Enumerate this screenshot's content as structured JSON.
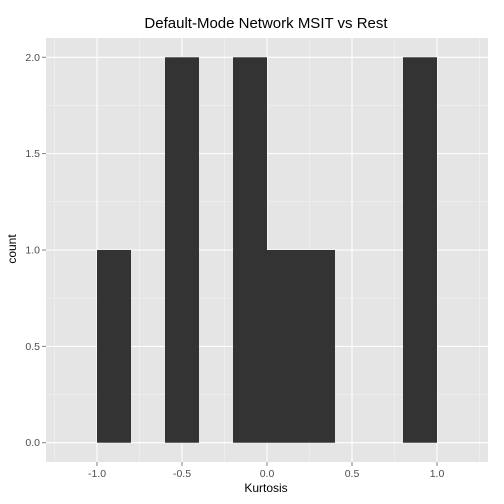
{
  "chart_data": {
    "type": "bar",
    "subtype": "histogram",
    "title": "Default-Mode Network MSIT vs Rest",
    "xlabel": "Kurtosis",
    "ylabel": "count",
    "xlim": [
      -1.3,
      1.3
    ],
    "ylim": [
      -0.1,
      2.1
    ],
    "xticks": [
      -1.0,
      -0.5,
      0.0,
      0.5,
      1.0
    ],
    "xtick_labels": [
      "-1.0",
      "-0.5",
      "0.0",
      "0.5",
      "1.0"
    ],
    "yticks": [
      0.0,
      0.5,
      1.0,
      1.5,
      2.0
    ],
    "ytick_labels": [
      "0.0",
      "0.5",
      "1.0",
      "1.5",
      "2.0"
    ],
    "bins": [
      {
        "x0": -1.0,
        "x1": -0.8,
        "count": 1
      },
      {
        "x0": -0.8,
        "x1": -0.6,
        "count": 0
      },
      {
        "x0": -0.6,
        "x1": -0.4,
        "count": 2
      },
      {
        "x0": -0.4,
        "x1": -0.2,
        "count": 0
      },
      {
        "x0": -0.2,
        "x1": 0.0,
        "count": 2
      },
      {
        "x0": 0.0,
        "x1": 0.2,
        "count": 1
      },
      {
        "x0": 0.2,
        "x1": 0.4,
        "count": 1
      },
      {
        "x0": 0.4,
        "x1": 0.6,
        "count": 0
      },
      {
        "x0": 0.6,
        "x1": 0.8,
        "count": 0
      },
      {
        "x0": 0.8,
        "x1": 1.0,
        "count": 2
      }
    ],
    "grid": true,
    "colors": {
      "panel": "#e5e5e5",
      "grid_major": "#ffffff",
      "grid_minor": "#f2f2f2",
      "bar": "#333333"
    }
  }
}
